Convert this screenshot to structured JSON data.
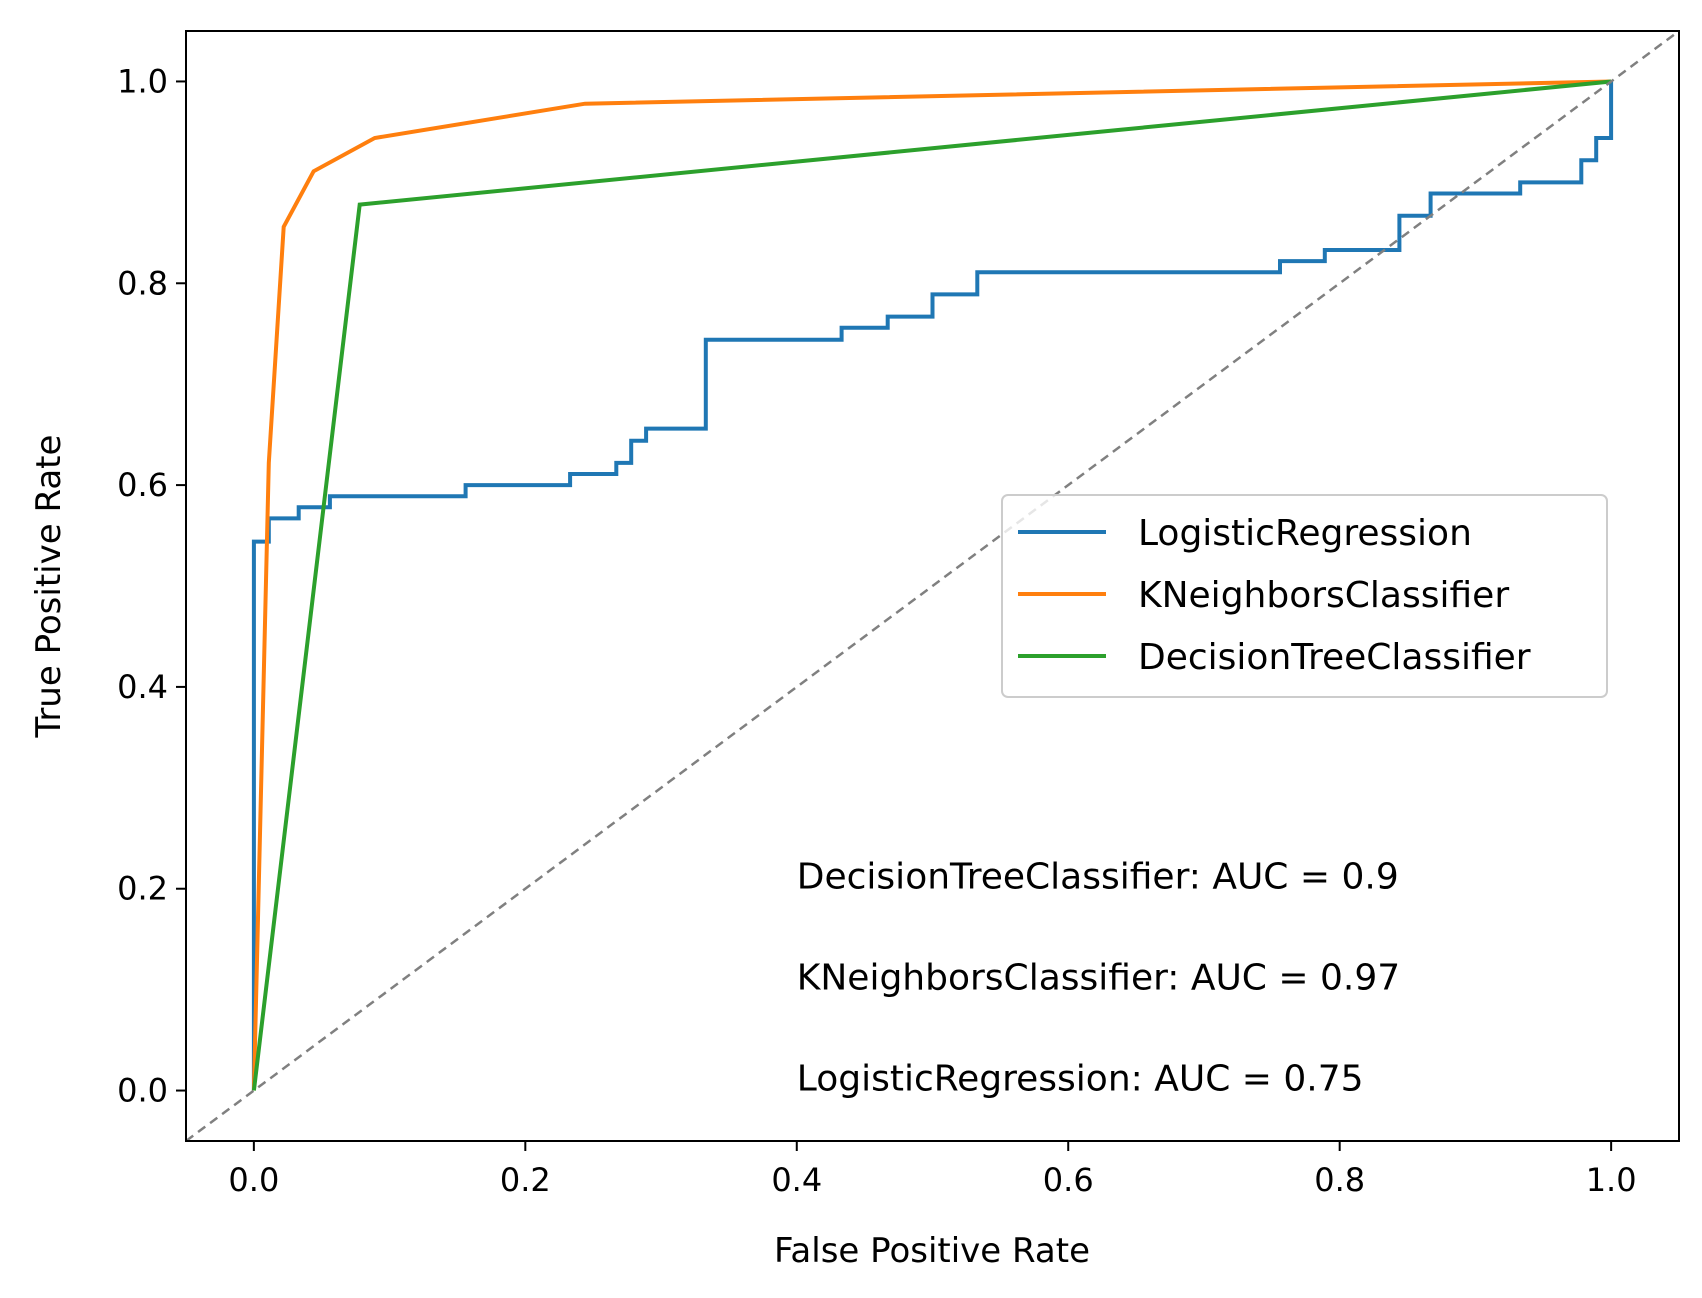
{
  "chart_data": {
    "type": "line",
    "xlabel": "False Positive Rate",
    "ylabel": "True Positive Rate",
    "xlim": [
      -0.05,
      1.05
    ],
    "ylim": [
      -0.05,
      1.05
    ],
    "x_ticks": [
      0.0,
      0.2,
      0.4,
      0.6,
      0.8,
      1.0
    ],
    "y_ticks": [
      0.0,
      0.2,
      0.4,
      0.6,
      0.8,
      1.0
    ],
    "x_tick_labels": [
      "0.0",
      "0.2",
      "0.4",
      "0.6",
      "0.8",
      "1.0"
    ],
    "y_tick_labels": [
      "0.0",
      "0.2",
      "0.4",
      "0.6",
      "0.8",
      "1.0"
    ],
    "grid": false,
    "legend_position": "center-right",
    "reference_line": {
      "x": [
        0,
        1
      ],
      "y": [
        0,
        1
      ],
      "color": "#808080",
      "style": "dashed"
    },
    "series": [
      {
        "name": "LogisticRegression",
        "color": "#1f77b4",
        "x": [
          0,
          0,
          0.011,
          0.011,
          0.033,
          0.033,
          0.056,
          0.056,
          0.156,
          0.156,
          0.233,
          0.233,
          0.267,
          0.267,
          0.278,
          0.278,
          0.289,
          0.289,
          0.333,
          0.333,
          0.433,
          0.433,
          0.444,
          0.444,
          0.467,
          0.467,
          0.5,
          0.5,
          0.533,
          0.533,
          0.756,
          0.756,
          0.789,
          0.789,
          0.844,
          0.844,
          0.867,
          0.867,
          0.933,
          0.933,
          0.978,
          0.978,
          0.989,
          0.989,
          1.0,
          1.0
        ],
        "y": [
          0,
          0.544,
          0.544,
          0.567,
          0.567,
          0.578,
          0.578,
          0.589,
          0.589,
          0.6,
          0.6,
          0.611,
          0.611,
          0.622,
          0.622,
          0.644,
          0.644,
          0.656,
          0.656,
          0.744,
          0.744,
          0.756,
          0.756,
          0.756,
          0.756,
          0.767,
          0.767,
          0.789,
          0.789,
          0.811,
          0.811,
          0.822,
          0.822,
          0.833,
          0.833,
          0.867,
          0.867,
          0.889,
          0.889,
          0.9,
          0.9,
          0.922,
          0.922,
          0.944,
          0.944,
          1.0
        ]
      },
      {
        "name": "KNeighborsClassifier",
        "color": "#ff7f0e",
        "x": [
          0,
          0.011,
          0.022,
          0.044,
          0.089,
          0.244,
          1.0
        ],
        "y": [
          0,
          0.622,
          0.856,
          0.911,
          0.944,
          0.978,
          1.0
        ]
      },
      {
        "name": "DecisionTreeClassifier",
        "color": "#2ca02c",
        "x": [
          0,
          0.078,
          1.0
        ],
        "y": [
          0,
          0.878,
          1.0
        ]
      }
    ],
    "annotations": [
      {
        "text": "DecisionTreeClassifier: AUC = 0.9",
        "x": 0.4,
        "y": 0.2
      },
      {
        "text": "KNeighborsClassifier: AUC = 0.97",
        "x": 0.4,
        "y": 0.1
      },
      {
        "text": "LogisticRegression: AUC = 0.75",
        "x": 0.4,
        "y": 0.0
      }
    ]
  }
}
